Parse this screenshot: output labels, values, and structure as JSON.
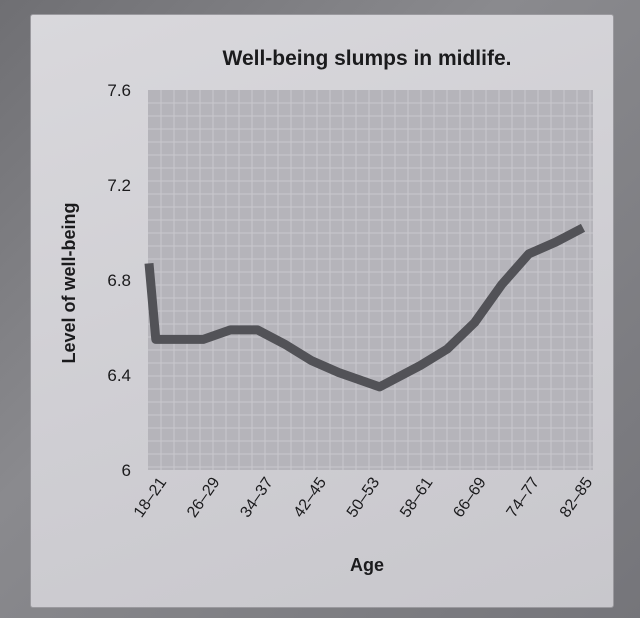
{
  "chart_data": {
    "type": "line",
    "title": "Well-being slumps in midlife.",
    "xlabel": "Age",
    "ylabel": "Level of well-being",
    "categories": [
      "18–21",
      "26–29",
      "34–37",
      "42–45",
      "50–53",
      "58–61",
      "66–69",
      "74–77",
      "82–85"
    ],
    "x": [
      18,
      19,
      22,
      26,
      30,
      34,
      38,
      42,
      46,
      50,
      52,
      58,
      62,
      66,
      70,
      74,
      78,
      82
    ],
    "values": [
      6.87,
      6.55,
      6.55,
      6.55,
      6.59,
      6.59,
      6.53,
      6.46,
      6.41,
      6.37,
      6.35,
      6.44,
      6.51,
      6.62,
      6.78,
      6.91,
      6.96,
      7.02
    ],
    "yticks": [
      "6",
      "6.4",
      "6.8",
      "7.2",
      "7.6"
    ],
    "ylim": [
      6,
      7.6
    ],
    "xlim": [
      18,
      82
    ],
    "grid": true,
    "colors": {
      "line": "#525257",
      "plot_bg": "#b5b4ba",
      "grid": "#c9c8cd",
      "text": "#1b1b1d"
    }
  }
}
